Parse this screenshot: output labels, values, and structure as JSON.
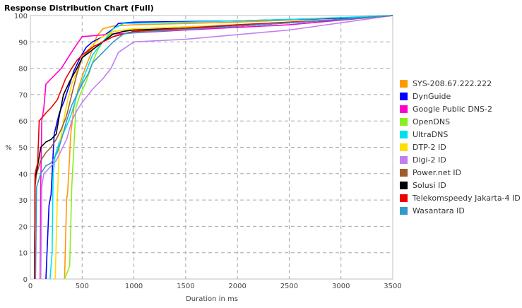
{
  "chart_data": {
    "type": "line",
    "title": "Response Distribution Chart (Full)",
    "xlabel": "Duration in ms",
    "ylabel": "%",
    "xlim": [
      0,
      3500
    ],
    "ylim": [
      0,
      100
    ],
    "x_ticks": [
      "0",
      "500",
      "1000",
      "1500",
      "2000",
      "2500",
      "3000",
      "3500"
    ],
    "y_ticks": [
      "0",
      "10",
      "20",
      "30",
      "40",
      "50",
      "60",
      "70",
      "80",
      "90",
      "100"
    ],
    "grid": true,
    "legend_position": "right",
    "series": [
      {
        "name": "SYS-208.67.222.222",
        "color": "#ff9900",
        "points": [
          [
            330,
            0
          ],
          [
            350,
            30
          ],
          [
            360,
            33
          ],
          [
            370,
            40
          ],
          [
            390,
            55
          ],
          [
            420,
            65
          ],
          [
            460,
            72
          ],
          [
            520,
            79
          ],
          [
            580,
            85
          ],
          [
            640,
            92
          ],
          [
            700,
            95
          ],
          [
            800,
            96
          ],
          [
            1000,
            96.5
          ],
          [
            2000,
            97.5
          ],
          [
            3000,
            99
          ],
          [
            3500,
            100
          ]
        ]
      },
      {
        "name": "DynGuide",
        "color": "#0000ff",
        "points": [
          [
            150,
            0
          ],
          [
            180,
            28
          ],
          [
            200,
            32
          ],
          [
            230,
            55
          ],
          [
            280,
            63
          ],
          [
            330,
            68
          ],
          [
            380,
            74
          ],
          [
            420,
            79
          ],
          [
            480,
            84
          ],
          [
            540,
            88
          ],
          [
            600,
            90
          ],
          [
            700,
            92
          ],
          [
            800,
            95
          ],
          [
            850,
            97
          ],
          [
            1000,
            97.5
          ],
          [
            2000,
            98
          ],
          [
            3000,
            99
          ],
          [
            3500,
            100
          ]
        ]
      },
      {
        "name": "Google Public DNS-2",
        "color": "#ff00cc",
        "points": [
          [
            95,
            0
          ],
          [
            100,
            35
          ],
          [
            110,
            60
          ],
          [
            130,
            65
          ],
          [
            150,
            74
          ],
          [
            200,
            76
          ],
          [
            300,
            80
          ],
          [
            380,
            85
          ],
          [
            430,
            88
          ],
          [
            500,
            92
          ],
          [
            600,
            92.3
          ],
          [
            800,
            93
          ],
          [
            1500,
            94.5
          ],
          [
            2500,
            96.5
          ],
          [
            3500,
            100
          ]
        ]
      },
      {
        "name": "OpenDNS",
        "color": "#88ee22",
        "points": [
          [
            330,
            0
          ],
          [
            380,
            5
          ],
          [
            400,
            35
          ],
          [
            420,
            50
          ],
          [
            440,
            65
          ],
          [
            480,
            70
          ],
          [
            540,
            75
          ],
          [
            600,
            82
          ],
          [
            650,
            87
          ],
          [
            700,
            90
          ],
          [
            800,
            94
          ],
          [
            1000,
            95
          ],
          [
            2000,
            96.5
          ],
          [
            3000,
            98.5
          ],
          [
            3500,
            100
          ]
        ]
      },
      {
        "name": "UltraDNS",
        "color": "#00e0f0",
        "points": [
          [
            190,
            0
          ],
          [
            210,
            10
          ],
          [
            220,
            40
          ],
          [
            240,
            47
          ],
          [
            280,
            52
          ],
          [
            350,
            58
          ],
          [
            400,
            63
          ],
          [
            450,
            70
          ],
          [
            500,
            75
          ],
          [
            550,
            80
          ],
          [
            600,
            85
          ],
          [
            700,
            90
          ],
          [
            800,
            95
          ],
          [
            900,
            97
          ],
          [
            1500,
            97.5
          ],
          [
            2500,
            98.5
          ],
          [
            3500,
            100
          ]
        ]
      },
      {
        "name": "DTP-2 ID",
        "color": "#ffdd00",
        "points": [
          [
            240,
            0
          ],
          [
            260,
            30
          ],
          [
            280,
            50
          ],
          [
            320,
            60
          ],
          [
            360,
            68
          ],
          [
            400,
            74
          ],
          [
            460,
            80
          ],
          [
            520,
            85
          ],
          [
            600,
            89
          ],
          [
            700,
            92
          ],
          [
            800,
            94
          ],
          [
            1000,
            95
          ],
          [
            2000,
            96.5
          ],
          [
            3000,
            98.5
          ],
          [
            3500,
            100
          ]
        ]
      },
      {
        "name": "Digi-2 ID",
        "color": "#c080f0",
        "points": [
          [
            100,
            0
          ],
          [
            110,
            35
          ],
          [
            130,
            40
          ],
          [
            180,
            42
          ],
          [
            250,
            45
          ],
          [
            350,
            53
          ],
          [
            400,
            60
          ],
          [
            450,
            64
          ],
          [
            500,
            67
          ],
          [
            600,
            72
          ],
          [
            700,
            76
          ],
          [
            780,
            80
          ],
          [
            850,
            86
          ],
          [
            1000,
            90
          ],
          [
            1500,
            91
          ],
          [
            2500,
            94.5
          ],
          [
            3500,
            100
          ]
        ]
      },
      {
        "name": "Power.net ID",
        "color": "#a05a2c",
        "points": [
          [
            40,
            0
          ],
          [
            45,
            35
          ],
          [
            60,
            40
          ],
          [
            100,
            45
          ],
          [
            150,
            48
          ],
          [
            200,
            50
          ],
          [
            250,
            53
          ],
          [
            300,
            57
          ],
          [
            350,
            62
          ],
          [
            400,
            70
          ],
          [
            450,
            78
          ],
          [
            500,
            84
          ],
          [
            600,
            88
          ],
          [
            700,
            90
          ],
          [
            800,
            92
          ],
          [
            1000,
            94
          ],
          [
            2000,
            96
          ],
          [
            3000,
            98.5
          ],
          [
            3500,
            100
          ]
        ]
      },
      {
        "name": "Solusi ID",
        "color": "#000000",
        "points": [
          [
            40,
            0
          ],
          [
            45,
            38
          ],
          [
            70,
            43
          ],
          [
            100,
            50
          ],
          [
            150,
            52
          ],
          [
            200,
            53
          ],
          [
            250,
            55
          ],
          [
            280,
            62
          ],
          [
            320,
            70
          ],
          [
            380,
            75
          ],
          [
            450,
            80
          ],
          [
            500,
            84
          ],
          [
            600,
            87
          ],
          [
            700,
            90
          ],
          [
            800,
            93
          ],
          [
            900,
            94
          ],
          [
            1000,
            94.5
          ],
          [
            2000,
            96
          ],
          [
            3000,
            98.5
          ],
          [
            3500,
            100
          ]
        ]
      },
      {
        "name": "Telekomspeedy Jakarta-4 ID",
        "color": "#ee0000",
        "points": [
          [
            40,
            0
          ],
          [
            45,
            40
          ],
          [
            70,
            44
          ],
          [
            85,
            60
          ],
          [
            150,
            63
          ],
          [
            200,
            65
          ],
          [
            260,
            68
          ],
          [
            300,
            72
          ],
          [
            340,
            76
          ],
          [
            400,
            80
          ],
          [
            450,
            83
          ],
          [
            500,
            85
          ],
          [
            600,
            88
          ],
          [
            700,
            90
          ],
          [
            800,
            92
          ],
          [
            1000,
            94
          ],
          [
            2000,
            96.5
          ],
          [
            3000,
            98.5
          ],
          [
            3500,
            100
          ]
        ]
      },
      {
        "name": "Wasantara ID",
        "color": "#3399cc",
        "points": [
          [
            50,
            0
          ],
          [
            60,
            35
          ],
          [
            100,
            40
          ],
          [
            150,
            43
          ],
          [
            200,
            44
          ],
          [
            260,
            48
          ],
          [
            300,
            53
          ],
          [
            350,
            60
          ],
          [
            400,
            66
          ],
          [
            450,
            70
          ],
          [
            500,
            74
          ],
          [
            560,
            78
          ],
          [
            600,
            82
          ],
          [
            700,
            86
          ],
          [
            800,
            90
          ],
          [
            900,
            93
          ],
          [
            1000,
            93.5
          ],
          [
            2000,
            96
          ],
          [
            3000,
            98.5
          ],
          [
            3500,
            100
          ]
        ]
      }
    ]
  }
}
